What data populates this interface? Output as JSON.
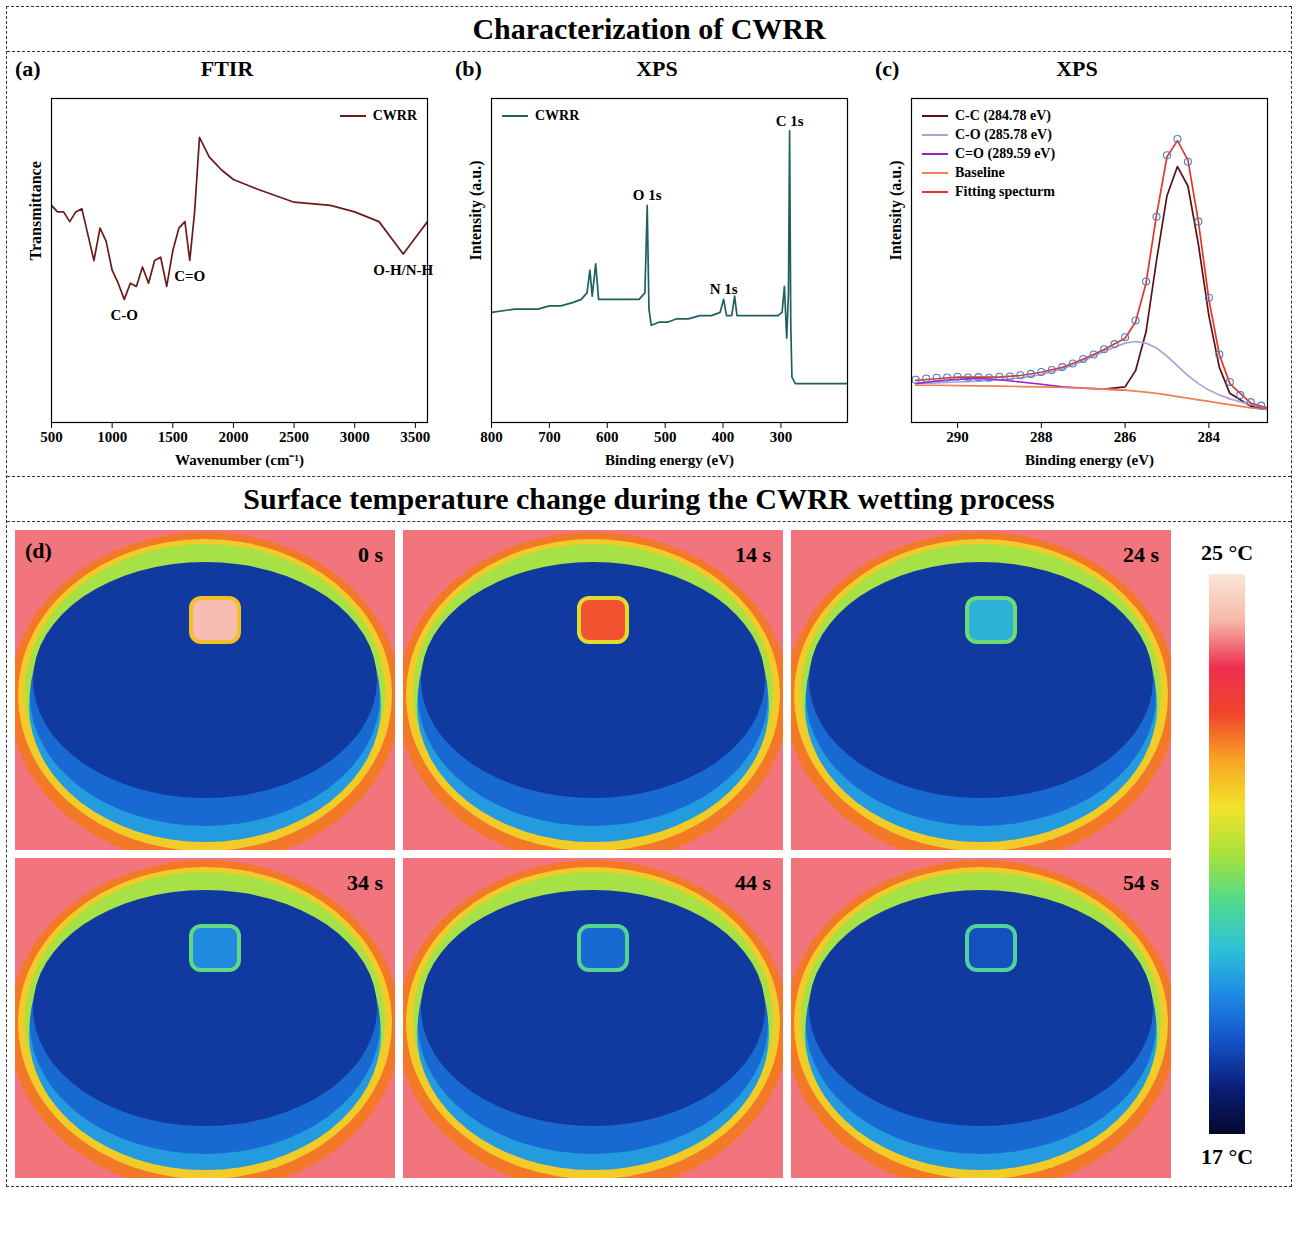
{
  "header": {
    "title": "Characterization of CWRR"
  },
  "chart_data": [
    {
      "type": "line",
      "panel": "(a)",
      "title": "FTIR",
      "x_label": "Wavenumber (cm⁻¹)",
      "y_label": "Transmittance",
      "x": [
        500,
        550,
        600,
        650,
        700,
        750,
        800,
        850,
        900,
        950,
        1000,
        1050,
        1100,
        1150,
        1200,
        1250,
        1300,
        1350,
        1400,
        1450,
        1500,
        1550,
        1600,
        1640,
        1680,
        1720,
        1800,
        1900,
        2000,
        2200,
        2500,
        2800,
        3000,
        3200,
        3400,
        3500,
        3600
      ],
      "series": [
        {
          "name": "CWRR",
          "color": "#6b1a1a",
          "values": [
            67,
            65,
            65,
            62,
            65,
            66,
            58,
            50,
            60,
            56,
            47,
            43,
            38,
            43,
            42,
            48,
            43,
            50,
            51,
            42,
            53,
            60,
            62,
            50,
            65,
            88,
            82,
            78,
            75,
            72,
            68,
            67,
            65,
            62,
            52,
            57,
            62
          ]
        }
      ],
      "xlim": [
        500,
        3600
      ],
      "xticks": [
        500,
        1000,
        1500,
        2000,
        2500,
        3000,
        3500
      ],
      "ylim": [
        0,
        100
      ],
      "tick_labels": "x",
      "legend": "top-right",
      "annotations": [
        {
          "text": "C-O",
          "x": 1100,
          "y": 38
        },
        {
          "text": "C=O",
          "x": 1640,
          "y": 50
        },
        {
          "text": "O-H/N-H",
          "x": 3400,
          "y": 52
        }
      ]
    },
    {
      "type": "line",
      "panel": "(b)",
      "title": "XPS",
      "x_label": "Binding energy (eV)",
      "y_label": "Intensity (a.u.)",
      "x": [
        800,
        760,
        720,
        700,
        680,
        660,
        645,
        635,
        630,
        626,
        620,
        615,
        600,
        580,
        560,
        545,
        535,
        531,
        528,
        524,
        510,
        495,
        480,
        460,
        440,
        420,
        405,
        399,
        394,
        385,
        380,
        376,
        360,
        340,
        320,
        305,
        298,
        294,
        290,
        287,
        285,
        283,
        281,
        275,
        250,
        220,
        185
      ],
      "series": [
        {
          "name": "CWRR",
          "color": "#1f5f5f",
          "values": [
            34,
            35,
            35,
            36,
            36,
            37,
            38,
            40,
            47,
            39,
            49,
            38,
            38,
            38,
            38,
            38,
            40,
            67,
            35,
            30,
            31,
            31,
            32,
            32,
            33,
            33,
            34,
            38,
            33,
            33,
            39,
            33,
            33,
            33,
            33,
            33,
            34,
            42,
            26,
            40,
            90,
            30,
            14,
            12,
            12,
            12,
            12
          ]
        }
      ],
      "xlim": [
        800,
        185
      ],
      "xticks": [
        800,
        700,
        600,
        500,
        400,
        300
      ],
      "ylim": [
        0,
        100
      ],
      "tick_labels": "x",
      "legend": "top-left",
      "annotations": [
        {
          "text": "O 1s",
          "x": 531,
          "y": 67
        },
        {
          "text": "N 1s",
          "x": 399,
          "y": 38
        },
        {
          "text": "C 1s",
          "x": 285,
          "y": 90
        }
      ]
    },
    {
      "type": "line",
      "panel": "(c)",
      "title": "XPS",
      "x_label": "Binding energy (eV)",
      "y_label": "Intensity (a.u.)",
      "x": [
        291,
        290.5,
        290,
        289.5,
        289,
        288.5,
        288,
        287.5,
        287,
        286.5,
        286,
        285.75,
        285.5,
        285.25,
        285,
        284.75,
        284.5,
        284.25,
        284,
        283.75,
        283.5,
        283,
        282.6
      ],
      "series": [
        {
          "name": "C-C (284.78 eV)",
          "color": "#5a0f14",
          "values": [
            null,
            null,
            null,
            null,
            null,
            null,
            null,
            null,
            null,
            10.3,
            11,
            16,
            28,
            50,
            70,
            79,
            73,
            55,
            33,
            17,
            9,
            5,
            4
          ]
        },
        {
          "name": "C-O (285.78 eV)",
          "color": "#a9a3d6",
          "values": [
            12,
            12.2,
            12.5,
            12.8,
            13.2,
            13.8,
            14.8,
            16.5,
            19,
            22,
            24.5,
            25,
            24.5,
            23,
            20.5,
            17.5,
            14.5,
            12,
            10,
            8.5,
            7.3,
            5.5,
            4.5
          ]
        },
        {
          "name": "C=O (289.59 eV)",
          "color": "#9b1fd0",
          "values": [
            12,
            12.8,
            13.3,
            13.6,
            13.2,
            12.5,
            11.8,
            11,
            10.6,
            10.3,
            10,
            null,
            null,
            null,
            null,
            null,
            null,
            null,
            null,
            null,
            null,
            null,
            null
          ]
        },
        {
          "name": "Baseline",
          "color": "#f08050",
          "values": [
            11.5,
            11.5,
            11.4,
            11.3,
            11.2,
            11.1,
            11,
            10.8,
            10.6,
            10.3,
            10,
            9.7,
            9.4,
            9.0,
            8.5,
            8.0,
            7.5,
            7.0,
            6.5,
            6.0,
            5.5,
            4.5,
            4.0
          ]
        },
        {
          "name": "Fitting specturm",
          "color": "#e8332a",
          "values": [
            13,
            13.5,
            14,
            14,
            14,
            14.5,
            15.5,
            17,
            19.5,
            22.5,
            26,
            31,
            43,
            64,
            82,
            87,
            81,
            62,
            38,
            21,
            12,
            6,
            4.5
          ]
        }
      ],
      "data_points": {
        "color": "#4a7fc1",
        "marker": "circle",
        "x": [
          291,
          290.75,
          290.5,
          290.25,
          290,
          289.75,
          289.5,
          289.25,
          289,
          288.75,
          288.5,
          288.25,
          288,
          287.75,
          287.5,
          287.25,
          287,
          286.75,
          286.5,
          286.25,
          286,
          285.75,
          285.5,
          285.25,
          285,
          284.75,
          284.5,
          284.25,
          284,
          283.75,
          283.5,
          283.25,
          283,
          282.75
        ],
        "values": [
          13.2,
          13.6,
          13.8,
          13.9,
          14.1,
          13.9,
          14.0,
          13.8,
          14.1,
          14.2,
          14.6,
          15.0,
          15.6,
          16.2,
          17.1,
          18.2,
          19.6,
          21,
          22.6,
          24.2,
          26.3,
          31.5,
          43.5,
          63.5,
          82.5,
          87.5,
          80.5,
          62,
          38.5,
          21,
          12.5,
          8.5,
          6.3,
          5.2
        ]
      },
      "xlim": [
        291.1,
        282.6
      ],
      "xticks": [
        290,
        288,
        286,
        284
      ],
      "ylim": [
        0,
        100
      ],
      "tick_labels": "x",
      "legend": "top-left"
    }
  ],
  "thermal": {
    "title": "Surface temperature change during the CWRR wetting process",
    "panel": "(d)",
    "ambient_temp": 24,
    "rim_temp": 21,
    "dish_temp": 18,
    "frames": [
      {
        "label": "0 s",
        "spot_temp": 24.5
      },
      {
        "label": "14 s",
        "spot_temp": 23
      },
      {
        "label": "24 s",
        "spot_temp": 19.5
      },
      {
        "label": "34 s",
        "spot_temp": 19
      },
      {
        "label": "44 s",
        "spot_temp": 18.6
      },
      {
        "label": "54 s",
        "spot_temp": 18.3
      }
    ],
    "colorbar": {
      "range": [
        17,
        25
      ],
      "ticks": [
        {
          "value": 25,
          "label": "25 °C"
        },
        {
          "value": 17,
          "label": "17 °C"
        }
      ]
    }
  }
}
